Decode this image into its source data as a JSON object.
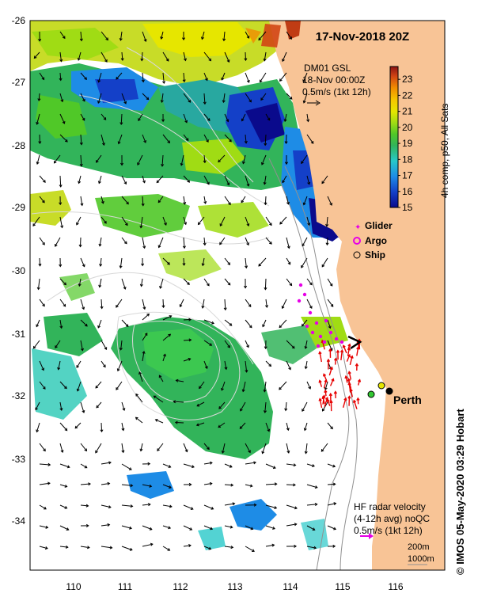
{
  "title": "17-Nov-2018 20Z",
  "glider_box": {
    "line1": "DM01 GSL",
    "line2": "18-Nov 00:00Z",
    "line3": "0.5m/s (1kt 12h)"
  },
  "colorbar": {
    "label": "4h comp, p50, All Sats",
    "ticks": [
      "23",
      "22",
      "21",
      "20",
      "19",
      "18",
      "17",
      "16",
      "15"
    ],
    "min": 15,
    "max": 23.8,
    "colors": [
      "#0a0a8c",
      "#1440c8",
      "#1e8ce6",
      "#28c8c8",
      "#32b45a",
      "#50c828",
      "#a0dc14",
      "#e6e600",
      "#f5c800",
      "#f08c00",
      "#d24614",
      "#8c1414"
    ]
  },
  "legend": {
    "glider": "Glider",
    "argo": "Argo",
    "ship": "Ship",
    "glider_color": "#e600e6",
    "argo_color": "#e600e6"
  },
  "city": "Perth",
  "hf_radar": {
    "line1": "HF radar velocity",
    "line2": "(4-12h avg) noQC",
    "line3": "0.5m/s (1kt 12h)"
  },
  "isobaths": {
    "shallow": "200m",
    "deep": "1000m"
  },
  "axes": {
    "x_ticks": [
      "110",
      "111",
      "112",
      "113",
      "114",
      "115",
      "116"
    ],
    "y_ticks": [
      "-26",
      "-27",
      "-28",
      "-29",
      "-30",
      "-31",
      "-32",
      "-33",
      "-34"
    ]
  },
  "credit": {
    "symbol": "©",
    "text": "IMOS 05-May-2020 03:29 Hobart"
  },
  "colors": {
    "land": "#f8c496",
    "sst_warm": "#e6e600",
    "sst_mid": "#32b45a",
    "sst_cool": "#1e8ce6",
    "sst_cold": "#0a0a8c",
    "hf_radar_arrow": "#e60000"
  }
}
